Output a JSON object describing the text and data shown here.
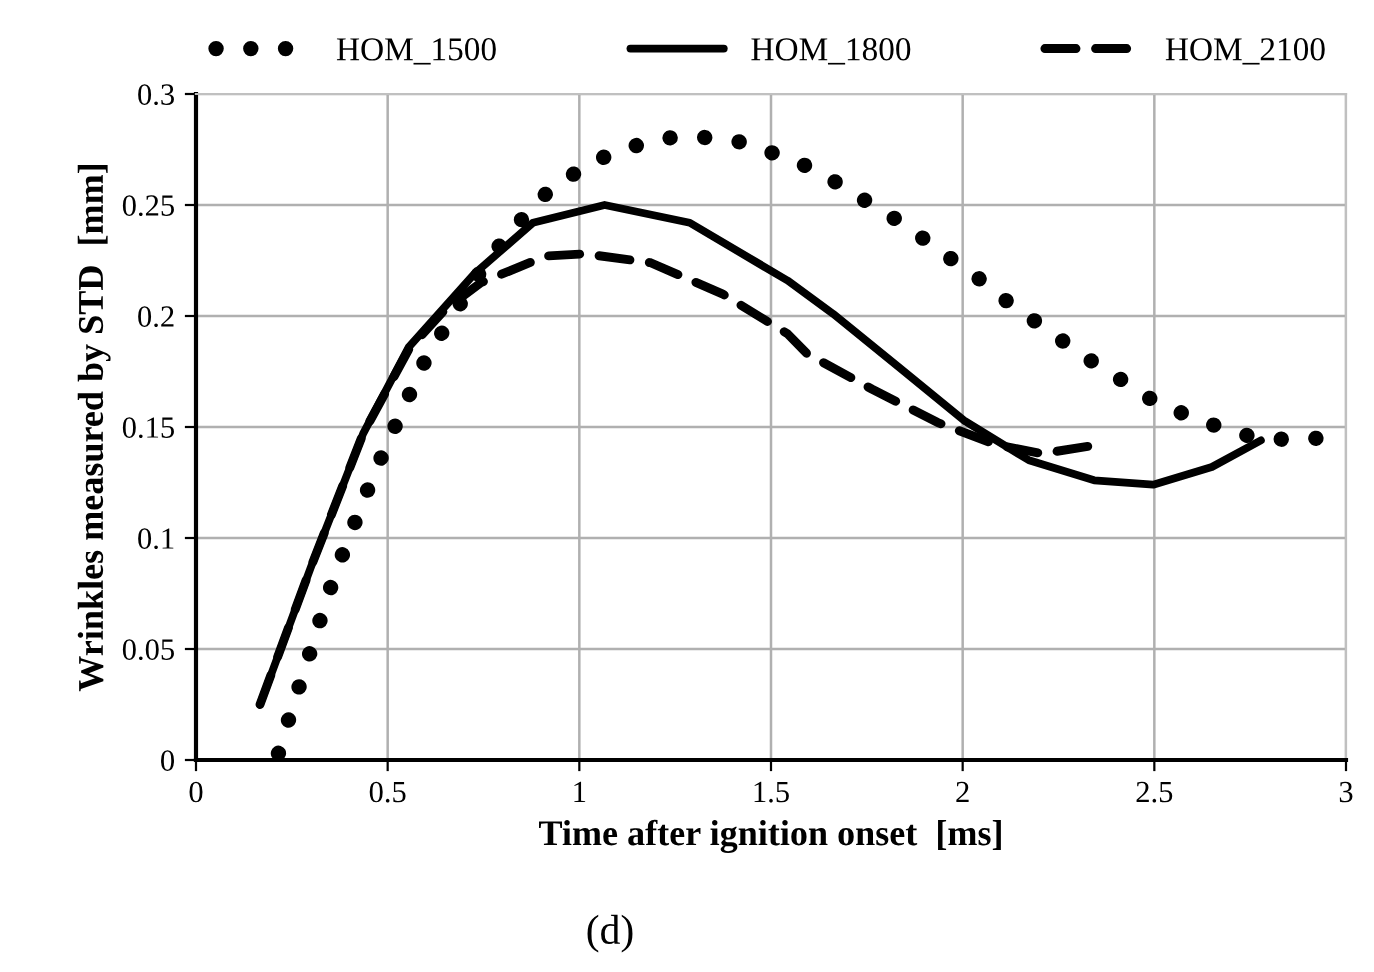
{
  "chart_data": {
    "type": "line",
    "xlabel": "Time after ignition onset  [ms]",
    "ylabel": "Wrinkles measured by STD  [mm]",
    "annotations": [
      "(d)"
    ],
    "xlim": [
      0,
      3
    ],
    "xticks": [
      0,
      0.5,
      1,
      1.5,
      2,
      2.5,
      3
    ],
    "ylim": [
      0,
      0.3
    ],
    "yticks": [
      0,
      0.05,
      0.1,
      0.15,
      0.2,
      0.25,
      0.3
    ],
    "grid": true,
    "legend": "top",
    "marker": "none",
    "series": [
      {
        "name": "HOM_1500",
        "color": "#000000",
        "line_style": "dotted",
        "x": [
          0.215,
          0.25,
          0.286,
          0.32,
          0.363,
          0.41,
          0.453,
          0.5,
          0.55,
          0.603,
          0.666,
          0.734,
          0.81,
          0.905,
          1.018,
          1.109,
          1.22,
          1.293,
          1.407,
          1.48,
          1.586,
          1.662,
          1.764,
          1.85,
          1.943,
          2.034,
          2.127,
          2.219,
          2.315,
          2.407,
          2.505,
          2.59,
          2.7,
          2.77,
          2.89,
          2.96
        ],
        "values": [
          0.003,
          0.023,
          0.042,
          0.061,
          0.084,
          0.105,
          0.124,
          0.143,
          0.162,
          0.182,
          0.199,
          0.218,
          0.236,
          0.254,
          0.268,
          0.275,
          0.28,
          0.281,
          0.279,
          0.275,
          0.268,
          0.261,
          0.25,
          0.241,
          0.229,
          0.218,
          0.205,
          0.194,
          0.182,
          0.172,
          0.161,
          0.155,
          0.148,
          0.145,
          0.144,
          0.146
        ]
      },
      {
        "name": "HOM_1800",
        "color": "#000000",
        "line_style": "solid",
        "x": [
          0.167,
          0.3,
          0.436,
          0.555,
          0.726,
          0.879,
          1.066,
          1.288,
          1.543,
          1.662,
          1.833,
          2.003,
          2.173,
          2.343,
          2.497,
          2.65,
          2.778
        ],
        "values": [
          0.025,
          0.087,
          0.147,
          0.186,
          0.219,
          0.242,
          0.25,
          0.242,
          0.216,
          0.201,
          0.177,
          0.153,
          0.135,
          0.126,
          0.124,
          0.132,
          0.144
        ]
      },
      {
        "name": "HOM_2100",
        "color": "#000000",
        "line_style": "dashed",
        "x": [
          0.167,
          0.3,
          0.436,
          0.555,
          0.65,
          0.743,
          0.913,
          1.015,
          1.186,
          1.373,
          1.543,
          1.594,
          1.764,
          1.935,
          2.088,
          2.207,
          2.352
        ],
        "values": [
          0.025,
          0.087,
          0.147,
          0.185,
          0.203,
          0.215,
          0.227,
          0.228,
          0.224,
          0.21,
          0.192,
          0.183,
          0.167,
          0.152,
          0.142,
          0.138,
          0.142
        ]
      }
    ]
  }
}
